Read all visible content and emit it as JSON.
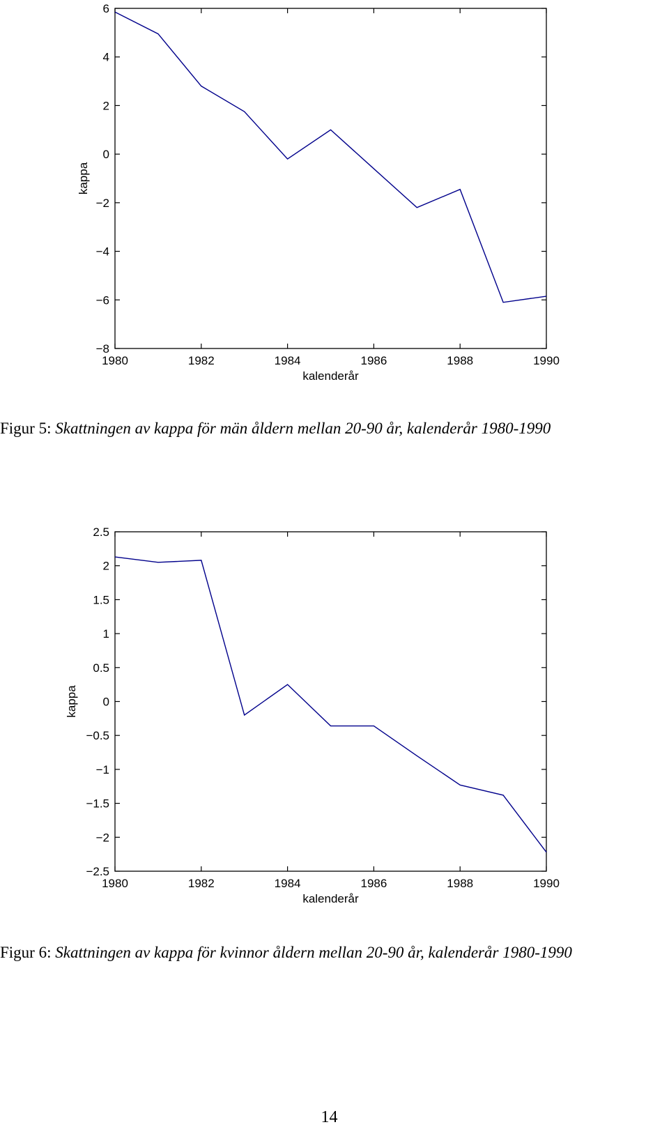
{
  "chart_data": [
    {
      "type": "line",
      "xlabel": "kalenderår",
      "ylabel": "kappa",
      "xlim": [
        1980,
        1990
      ],
      "ylim": [
        -8,
        6
      ],
      "xticks": [
        1980,
        1982,
        1984,
        1986,
        1988,
        1990
      ],
      "yticks": [
        -8,
        -6,
        -4,
        -2,
        0,
        2,
        4,
        6
      ],
      "ytick_labels": [
        "−8",
        "−6",
        "−4",
        "−2",
        "0",
        "2",
        "4",
        "6"
      ],
      "line_color": "#00008b",
      "grid": false,
      "series": [
        {
          "x": [
            1980,
            1981,
            1982,
            1983,
            1984,
            1985,
            1986,
            1987,
            1988,
            1989,
            1990
          ],
          "values": [
            5.85,
            4.95,
            2.8,
            1.75,
            -0.2,
            1.0,
            -0.6,
            -2.2,
            -1.45,
            -6.1,
            -5.85
          ]
        }
      ]
    },
    {
      "type": "line",
      "xlabel": "kalenderår",
      "ylabel": "kappa",
      "xlim": [
        1980,
        1990
      ],
      "ylim": [
        -2.5,
        2.5
      ],
      "xticks": [
        1980,
        1982,
        1984,
        1986,
        1988,
        1990
      ],
      "yticks": [
        -2.5,
        -2,
        -1.5,
        -1,
        -0.5,
        0,
        0.5,
        1,
        1.5,
        2,
        2.5
      ],
      "ytick_labels": [
        "−2.5",
        "−2",
        "−1.5",
        "−1",
        "−0.5",
        "0",
        "0.5",
        "1",
        "1.5",
        "2",
        "2.5"
      ],
      "line_color": "#00008b",
      "grid": false,
      "series": [
        {
          "x": [
            1980,
            1981,
            1982,
            1983,
            1984,
            1985,
            1986,
            1987,
            1988,
            1989,
            1990
          ],
          "values": [
            2.13,
            2.05,
            2.08,
            -0.2,
            0.25,
            -0.36,
            -0.36,
            -0.8,
            -1.23,
            -1.38,
            -2.22
          ]
        }
      ]
    }
  ],
  "captions": [
    {
      "label": "Figur 5:",
      "text": "Skattningen av kappa för män åldern mellan 20-90 år, kalenderår 1980-1990"
    },
    {
      "label": "Figur 6:",
      "text": "Skattningen av kappa för kvinnor åldern mellan 20-90 år, kalenderår 1980-1990"
    }
  ],
  "page_number": "14"
}
